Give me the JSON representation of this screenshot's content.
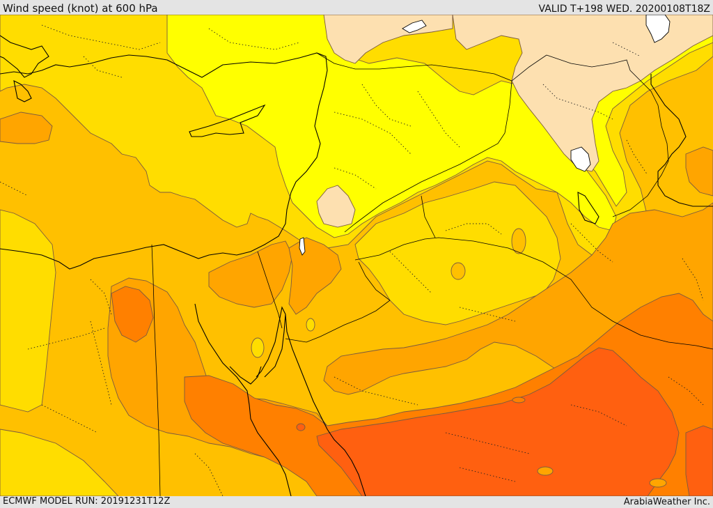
{
  "header": {
    "title": "Wind speed (knot) at 600 hPa",
    "valid": "VALID T+198 WED. 20200108T18Z"
  },
  "footer": {
    "model_run": "ECMWF MODEL RUN: 20191231T12Z",
    "credit": "ArabiaWeather Inc."
  },
  "map": {
    "variable": "Wind speed",
    "unit": "knot",
    "level": "600 hPa",
    "speed_band_colors": {
      "lowest": "#fde0b0",
      "low": "#ffff00",
      "moderate": "#ffdd00",
      "elevated": "#ffc000",
      "high": "#ffa500",
      "higher": "#ff8000",
      "highest": "#ff6010"
    }
  }
}
